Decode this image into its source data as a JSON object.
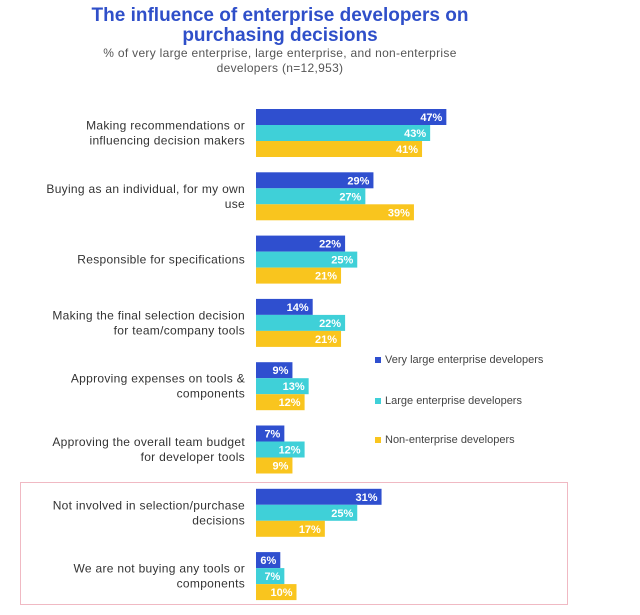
{
  "title": {
    "line1": "The influence of enterprise developers on",
    "line2": "purchasing decisions"
  },
  "subtitle": {
    "line1": "% of very large enterprise, large enterprise, and non-enterprise",
    "line2": "developers (n=12,953)"
  },
  "legend": [
    {
      "label": "Very large enterprise developers",
      "color": "#2f4fcf"
    },
    {
      "label": "Large enterprise developers",
      "color": "#3fd0d8"
    },
    {
      "label": "Non-enterprise developers",
      "color": "#f9c51e"
    }
  ],
  "chart_data": {
    "type": "bar",
    "orientation": "horizontal",
    "categories": [
      [
        "Making recommendations or",
        "influencing decision makers"
      ],
      [
        "Buying as an individual, for my own",
        "use"
      ],
      [
        "Responsible for specifications"
      ],
      [
        "Making the final selection decision",
        "for team/company tools"
      ],
      [
        "Approving expenses on tools &",
        "components"
      ],
      [
        "Approving the overall team budget",
        "for developer tools"
      ],
      [
        "Not involved in selection/purchase",
        "decisions"
      ],
      [
        "We are not buying any tools or",
        "components"
      ]
    ],
    "series": [
      {
        "name": "Very large enterprise developers",
        "color": "#2f4fcf",
        "values": [
          47,
          29,
          22,
          14,
          9,
          7,
          31,
          6
        ]
      },
      {
        "name": "Large enterprise developers",
        "color": "#3fd0d8",
        "values": [
          43,
          27,
          25,
          22,
          13,
          12,
          25,
          7
        ]
      },
      {
        "name": "Non-enterprise developers",
        "color": "#f9c51e",
        "values": [
          41,
          39,
          21,
          21,
          12,
          9,
          17,
          10
        ]
      }
    ],
    "value_suffix": "%",
    "legend_position": "right",
    "grid": false,
    "highlighted_categories": [
      6,
      7
    ]
  }
}
